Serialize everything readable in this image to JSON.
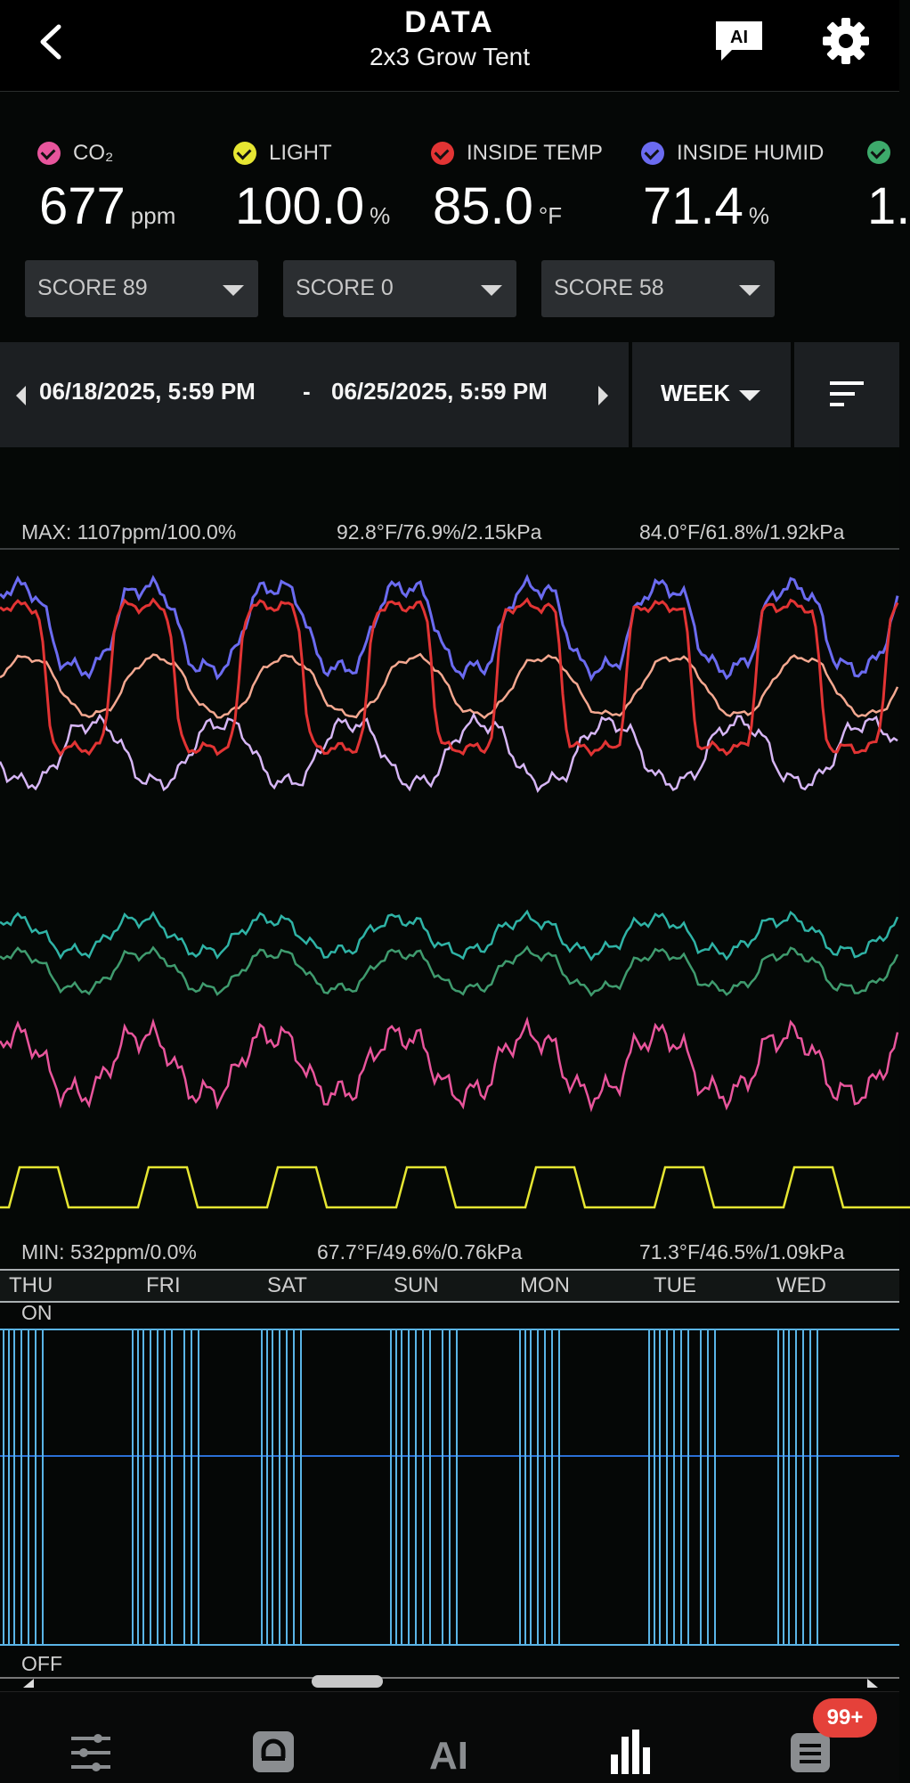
{
  "header": {
    "title": "DATA",
    "subtitle": "2x3 Grow Tent",
    "ai_label": "AI"
  },
  "metrics": [
    {
      "label": "CO₂",
      "value": "677",
      "unit": "ppm",
      "color": "#e8559c"
    },
    {
      "label": "LIGHT",
      "value": "100.0",
      "unit": "%",
      "color": "#e6e632"
    },
    {
      "label": "INSIDE TEMP",
      "value": "85.0",
      "unit": "°F",
      "color": "#e23434"
    },
    {
      "label": "INSIDE HUMID",
      "value": "71.4",
      "unit": "%",
      "color": "#6b6bf0"
    },
    {
      "label": "",
      "value": "1.",
      "unit": "",
      "color": "#3daa6b"
    }
  ],
  "scores": [
    "SCORE 89",
    "SCORE 0",
    "SCORE 58"
  ],
  "date_range": {
    "start": "06/18/2025, 5:59 PM",
    "separator": "-",
    "end": "06/25/2025, 5:59 PM",
    "period": "WEEK"
  },
  "chart_labels": {
    "max_left": "MAX: 1107ppm/100.0%",
    "max_mid": "92.8°F/76.9%/2.15kPa",
    "max_right": "84.0°F/61.8%/1.92kPa",
    "min_left": "MIN: 532ppm/0.0%",
    "min_mid": "67.7°F/49.6%/0.76kPa",
    "min_right": "71.3°F/46.5%/1.09kPa"
  },
  "days": [
    "THU",
    "FRI",
    "SAT",
    "SUN",
    "MON",
    "TUE",
    "WED"
  ],
  "device": {
    "on_label": "ON",
    "off_label": "OFF"
  },
  "chart_data": {
    "type": "line",
    "x": [
      "THU",
      "FRI",
      "SAT",
      "SUN",
      "MON",
      "TUE",
      "WED"
    ],
    "series": [],
    "annotations": {
      "max": "MAX: 1107ppm/100.0%  92.8°F/76.9%/2.15kPa  84.0°F/61.8%/1.92kPa",
      "min": "MIN: 532ppm/0.0%  67.7°F/49.6%/0.76kPa  71.3°F/46.5%/1.09kPa"
    },
    "grid": false
  },
  "nav": {
    "badge": "99+",
    "items": [
      "controls",
      "devices",
      "ai",
      "data",
      "logs"
    ],
    "ai_label": "AI"
  },
  "colors": {
    "co2": "#e8559c",
    "light": "#e6e632",
    "temp": "#e23434",
    "humid": "#6b6bf0",
    "vpd": "#3daa6b",
    "outside_temp": "#f4a890",
    "outside_humid": "#d6b6f5",
    "teal": "#2fb3a6",
    "device": "#5ab4e6",
    "accent_badge": "#e5413a"
  }
}
